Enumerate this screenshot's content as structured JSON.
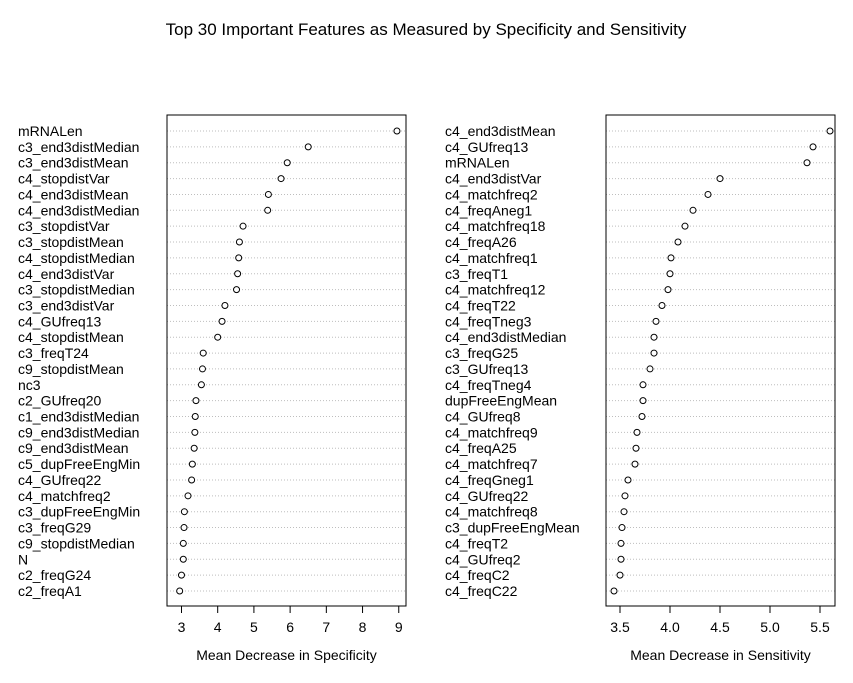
{
  "chart_data": {
    "title": "Top 30 Important Features as Measured by Specificity and Sensitivity",
    "panels": [
      {
        "type": "scatter",
        "subtype": "dotchart",
        "xlabel": "Mean Decrease in Specificity",
        "xlim": [
          2.6,
          9.2
        ],
        "xticks": [
          3,
          4,
          5,
          6,
          7,
          8,
          9
        ],
        "grid": "dotted horizontal guide lines",
        "features": [
          "mRNALen",
          "c3_end3distMedian",
          "c3_end3distMean",
          "c4_stopdistVar",
          "c4_end3distMean",
          "c4_end3distMedian",
          "c3_stopdistVar",
          "c3_stopdistMean",
          "c4_stopdistMedian",
          "c4_end3distVar",
          "c3_stopdistMedian",
          "c3_end3distVar",
          "c4_GUfreq13",
          "c4_stopdistMean",
          "c3_freqT24",
          "c9_stopdistMean",
          "nc3",
          "c2_GUfreq20",
          "c1_end3distMedian",
          "c9_end3distMedian",
          "c9_end3distMean",
          "c5_dupFreeEngMin",
          "c4_GUfreq22",
          "c4_matchfreq2",
          "c3_dupFreeEngMin",
          "c3_freqG29",
          "c9_stopdistMedian",
          "N",
          "c2_freqG24",
          "c2_freqA1"
        ],
        "values": [
          8.95,
          6.5,
          5.92,
          5.75,
          5.4,
          5.38,
          4.7,
          4.6,
          4.58,
          4.55,
          4.52,
          4.2,
          4.12,
          4.0,
          3.6,
          3.58,
          3.55,
          3.4,
          3.38,
          3.37,
          3.35,
          3.3,
          3.28,
          3.18,
          3.08,
          3.07,
          3.05,
          3.05,
          3.0,
          2.95
        ]
      },
      {
        "type": "scatter",
        "subtype": "dotchart",
        "xlabel": "Mean Decrease in Sensitivity",
        "xlim": [
          3.36,
          5.65
        ],
        "xticks": [
          3.5,
          4.0,
          4.5,
          5.0,
          5.5
        ],
        "xtick_labels": [
          "3.5",
          "4.0",
          "4.5",
          "5.0",
          "5.5"
        ],
        "grid": "dotted horizontal guide lines",
        "features": [
          "c4_end3distMean",
          "c4_GUfreq13",
          "mRNALen",
          "c4_end3distVar",
          "c4_matchfreq2",
          "c4_freqAneg1",
          "c4_matchfreq18",
          "c4_freqA26",
          "c4_matchfreq1",
          "c3_freqT1",
          "c4_matchfreq12",
          "c4_freqT22",
          "c4_freqTneg3",
          "c4_end3distMedian",
          "c3_freqG25",
          "c3_GUfreq13",
          "c4_freqTneg4",
          "dupFreeEngMean",
          "c4_GUfreq8",
          "c4_matchfreq9",
          "c4_freqA25",
          "c4_matchfreq7",
          "c4_freqGneg1",
          "c4_GUfreq22",
          "c4_matchfreq8",
          "c3_dupFreeEngMean",
          "c4_freqT2",
          "c4_GUfreq2",
          "c4_freqC2",
          "c4_freqC22"
        ],
        "values": [
          5.6,
          5.43,
          5.37,
          4.5,
          4.38,
          4.23,
          4.15,
          4.08,
          4.01,
          4.0,
          3.98,
          3.92,
          3.86,
          3.84,
          3.84,
          3.8,
          3.73,
          3.73,
          3.72,
          3.67,
          3.66,
          3.65,
          3.58,
          3.55,
          3.54,
          3.52,
          3.51,
          3.51,
          3.5,
          3.44
        ]
      }
    ]
  }
}
